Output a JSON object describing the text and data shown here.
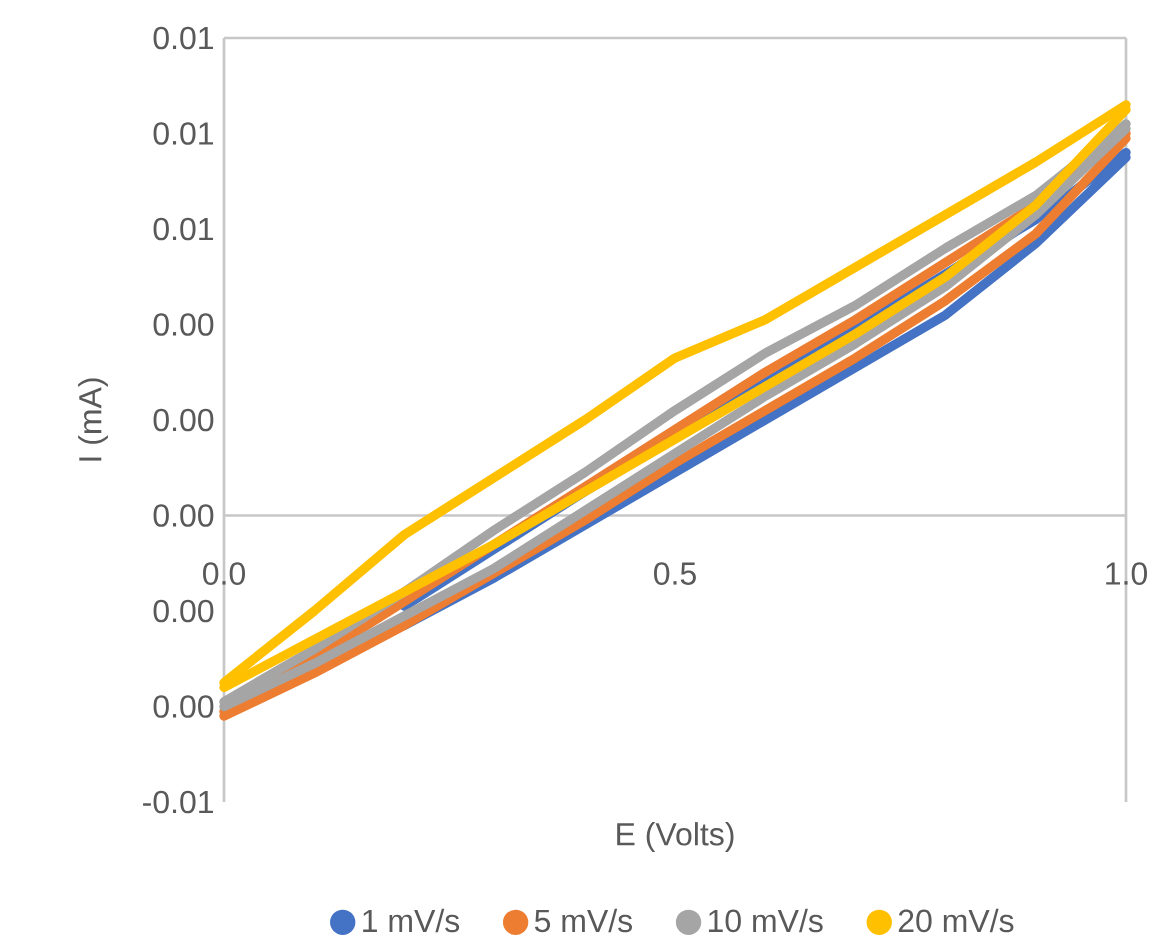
{
  "chart_data": {
    "type": "line",
    "xlabel": "E (Volts)",
    "ylabel": "I (mA)",
    "xlim": [
      0,
      1
    ],
    "ylim": [
      -0.006,
      0.01
    ],
    "x": [
      0,
      0.1,
      0.2,
      0.3,
      0.4,
      0.5,
      0.6,
      0.7,
      0.8,
      0.9,
      1
    ],
    "xticks": [
      {
        "value": 0,
        "label": "0.0"
      },
      {
        "value": 0.5,
        "label": "0.5"
      },
      {
        "value": 1,
        "label": "1.0"
      }
    ],
    "yticks": [
      {
        "value": -0.006,
        "label": "-0.01"
      },
      {
        "value": -0.004,
        "label": "0.00"
      },
      {
        "value": -0.002,
        "label": "0.00"
      },
      {
        "value": 0,
        "label": "0.00"
      },
      {
        "value": 0.002,
        "label": "0.00"
      },
      {
        "value": 0.004,
        "label": "0.00"
      },
      {
        "value": 0.006,
        "label": "0.01"
      },
      {
        "value": 0.008,
        "label": "0.01"
      },
      {
        "value": 0.01,
        "label": "0.01"
      }
    ],
    "grid": false,
    "legend": "bottom",
    "line_style": "solid",
    "series": [
      {
        "name": "1 mV/s",
        "color": "#4472c4",
        "values": [
          null,
          null,
          -0.0019,
          -0.0007,
          0.0005,
          null,
          null,
          null,
          null,
          0.0062,
          0.0076
        ]
      },
      {
        "color": "#4472c4",
        "values": [
          null,
          null,
          -0.0023,
          -0.0013,
          -0.0002,
          0.0009,
          0.002,
          0.0031,
          0.0042,
          0.0057,
          0.0075
        ]
      },
      {
        "name": "5 mV/s",
        "color": "#ed7d31",
        "values": [
          -0.0041,
          -0.003,
          -0.0018,
          -0.0006,
          0.0006,
          0.0018,
          0.003,
          0.0041,
          0.0053,
          0.0065,
          0.008
        ]
      },
      {
        "color": "#ed7d31",
        "values": [
          -0.0042,
          -0.0033,
          -0.0023,
          -0.0012,
          -0.0001,
          0.0011,
          0.0022,
          0.0033,
          0.0045,
          0.0059,
          0.0079
        ]
      },
      {
        "name": "10 mV/s",
        "color": "#a5a5a5",
        "values": [
          -0.0039,
          -0.0028,
          -0.0016,
          -0.0003,
          0.0009,
          0.0022,
          0.0034,
          0.0044,
          0.0056,
          0.0067,
          0.0082
        ]
      },
      {
        "color": "#a5a5a5",
        "values": [
          -0.004,
          -0.0031,
          -0.0021,
          -0.0011,
          0.0001,
          0.0013,
          0.0025,
          0.0036,
          0.0048,
          0.0063,
          0.0081
        ]
      },
      {
        "name": "20 mV/s",
        "color": "#ffc000",
        "values": [
          -0.0035,
          -0.002,
          -0.0004,
          0.0008,
          0.002,
          0.0033,
          0.0041,
          0.0052,
          0.0063,
          0.0074,
          0.0086
        ]
      },
      {
        "color": "#ffc000",
        "values": [
          -0.0036,
          -0.0026,
          -0.0016,
          -0.0006,
          0.0005,
          0.0016,
          0.0027,
          0.0038,
          0.005,
          0.0065,
          0.0085
        ]
      }
    ]
  }
}
